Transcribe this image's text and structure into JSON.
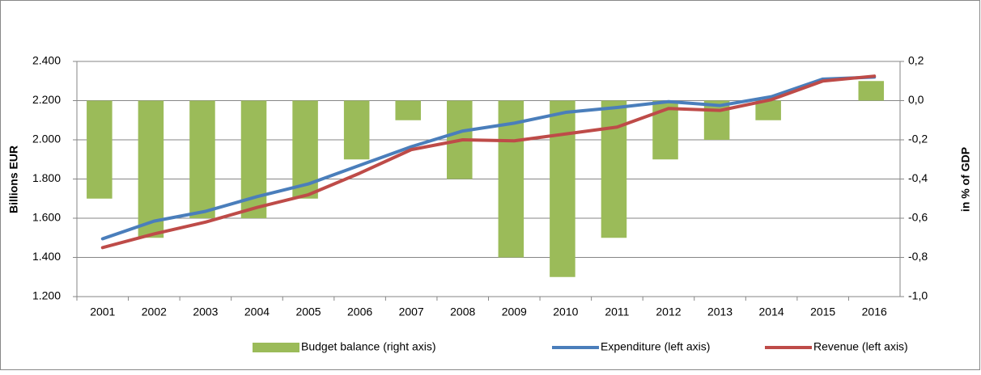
{
  "chart_data": {
    "type": "combo",
    "y_label": "Billions EUR",
    "y2_label": "in % of GDP",
    "categories": [
      "2001",
      "2002",
      "2003",
      "2004",
      "2005",
      "2006",
      "2007",
      "2008",
      "2009",
      "2010",
      "2011",
      "2012",
      "2013",
      "2014",
      "2015",
      "2016"
    ],
    "series": [
      {
        "name": "Budget balance (right axis)",
        "type": "bar",
        "axis": "y2",
        "color": "#9bbb59",
        "values": [
          -0.5,
          -0.7,
          -0.6,
          -0.6,
          -0.5,
          -0.3,
          -0.1,
          -0.4,
          -0.8,
          -0.9,
          -0.7,
          -0.3,
          -0.2,
          -0.1,
          0.0,
          0.1
        ]
      },
      {
        "name": "Expenditure (left axis)",
        "type": "line",
        "axis": "y",
        "color": "#4a7ebb",
        "values": [
          1495,
          1585,
          1635,
          1710,
          1775,
          1870,
          1965,
          2045,
          2085,
          2140,
          2165,
          2195,
          2175,
          2220,
          2310,
          2320
        ]
      },
      {
        "name": "Revenue (left axis)",
        "type": "line",
        "axis": "y",
        "color": "#be4b48",
        "values": [
          1450,
          1520,
          1580,
          1655,
          1720,
          1830,
          1950,
          2000,
          1995,
          2030,
          2065,
          2160,
          2150,
          2205,
          2300,
          2325
        ]
      }
    ],
    "ylim": [
      1200,
      2400
    ],
    "yticks": [
      {
        "value": 1200,
        "label": "1.200"
      },
      {
        "value": 1400,
        "label": "1.400"
      },
      {
        "value": 1600,
        "label": "1.600"
      },
      {
        "value": 1800,
        "label": "1.800"
      },
      {
        "value": 2000,
        "label": "2.000"
      },
      {
        "value": 2200,
        "label": "2.200"
      },
      {
        "value": 2400,
        "label": "2.400"
      }
    ],
    "y2lim": [
      -1.0,
      0.2
    ],
    "y2ticks": [
      {
        "value": -1.0,
        "label": "-1,0"
      },
      {
        "value": -0.8,
        "label": "-0,8"
      },
      {
        "value": -0.6,
        "label": "-0,6"
      },
      {
        "value": -0.4,
        "label": "-0,4"
      },
      {
        "value": -0.2,
        "label": "-0,2"
      },
      {
        "value": 0.0,
        "label": "0,0"
      },
      {
        "value": 0.2,
        "label": "0,2"
      }
    ],
    "grid": true,
    "legend": "bottom"
  }
}
